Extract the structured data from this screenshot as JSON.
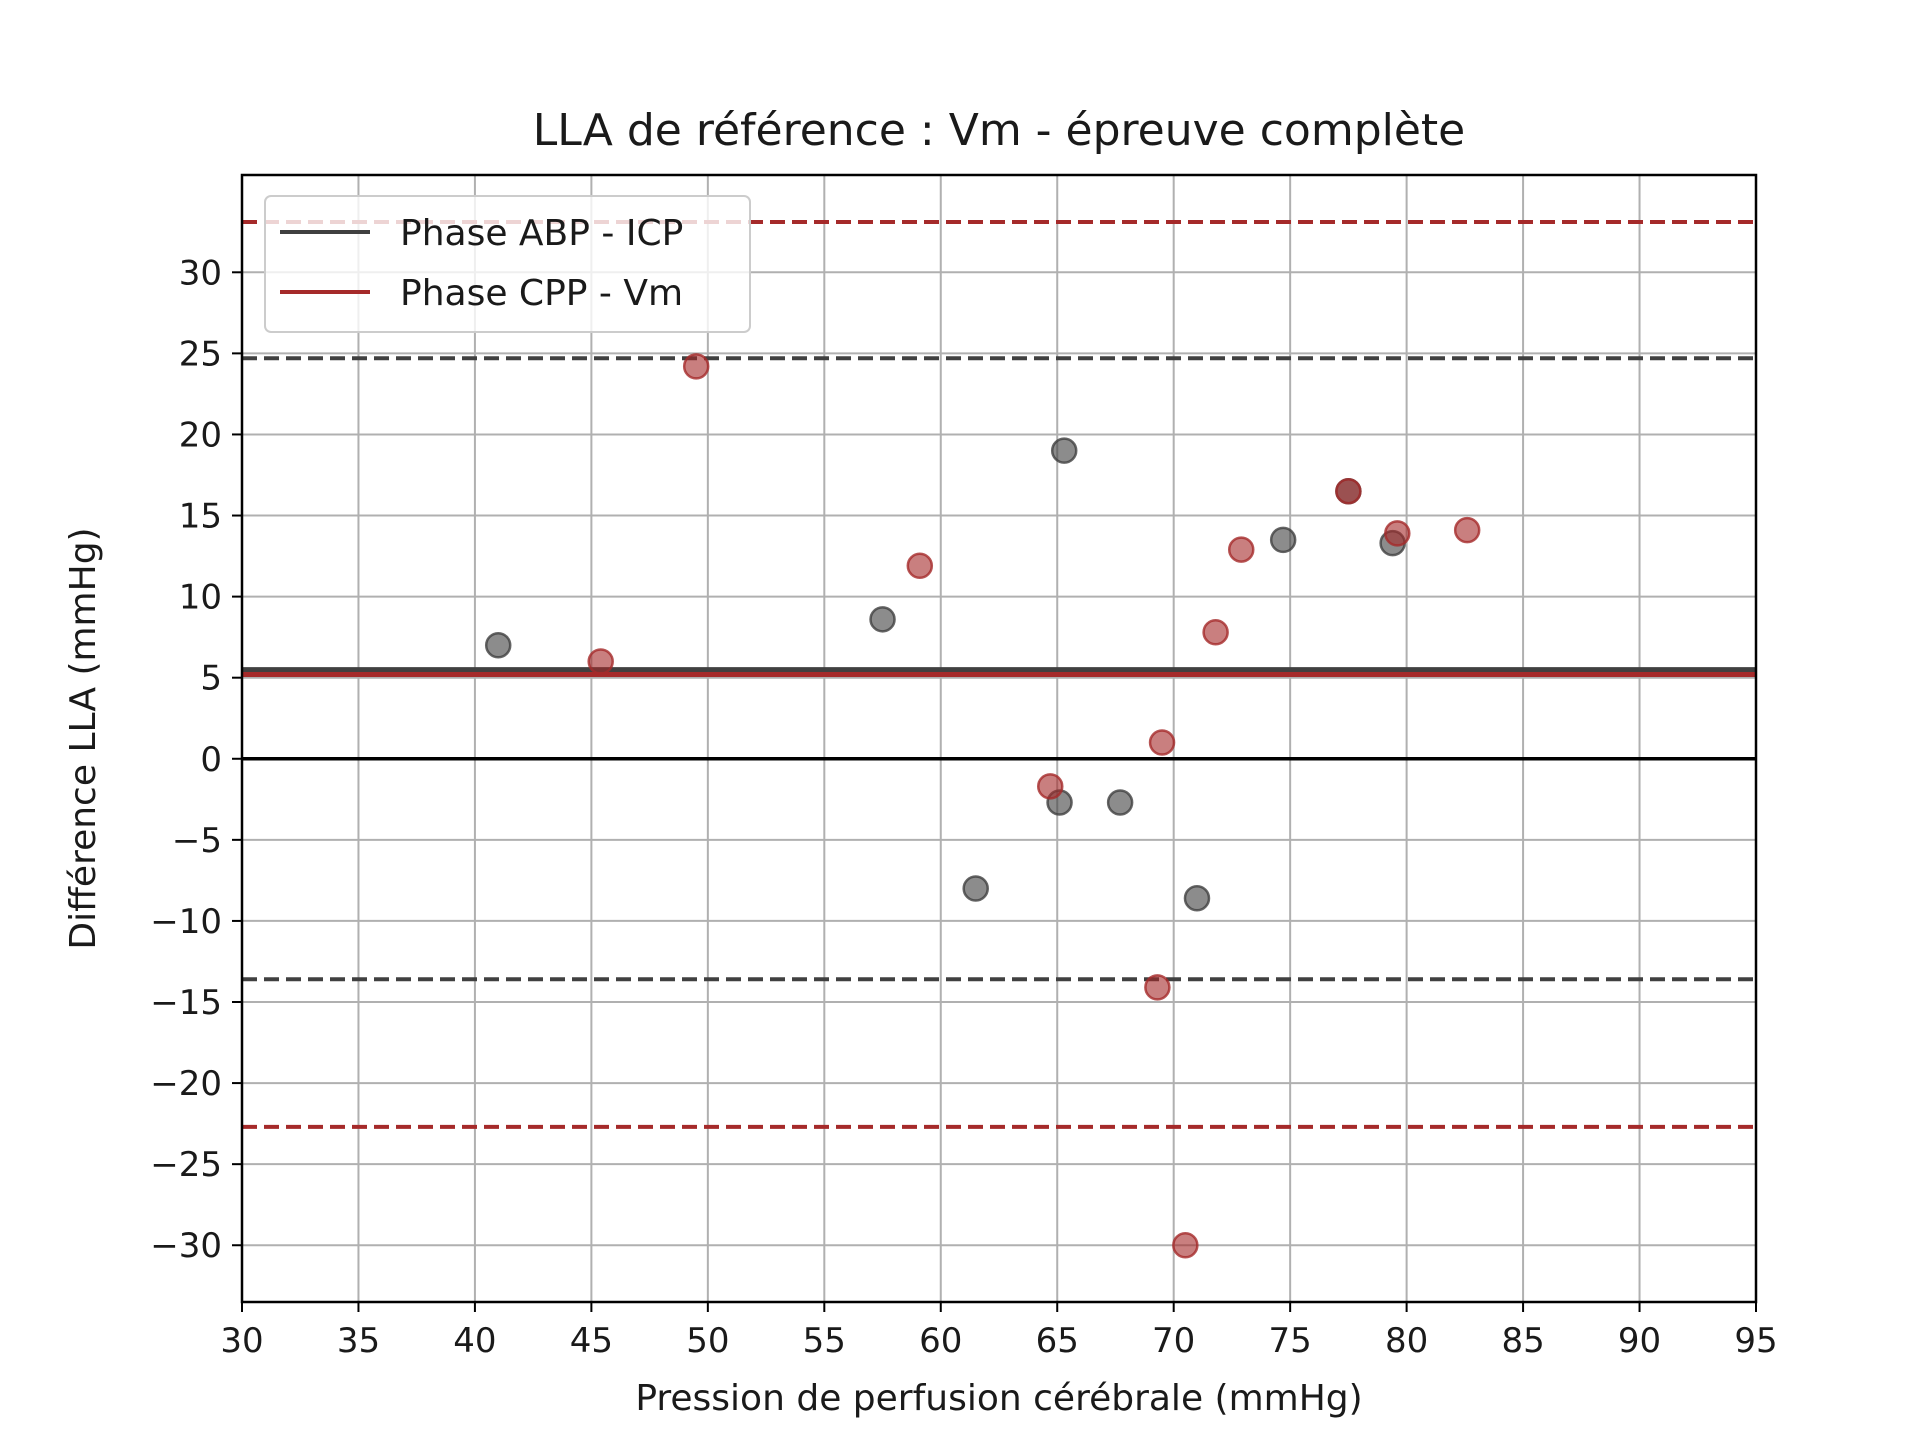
{
  "chart_data": {
    "type": "scatter",
    "title": "LLA de référence : Vm - épreuve complète",
    "xlabel": "Pression de perfusion cérébrale (mmHg)",
    "ylabel": "Différence LLA (mmHg)",
    "xlim": [
      30,
      95
    ],
    "ylim": [
      -33.5,
      36
    ],
    "xticks": [
      30,
      35,
      40,
      45,
      50,
      55,
      60,
      65,
      70,
      75,
      80,
      85,
      90,
      95
    ],
    "yticks": [
      -30,
      -25,
      -20,
      -15,
      -10,
      -5,
      0,
      5,
      10,
      15,
      20,
      25,
      30
    ],
    "grid": true,
    "legend_position": "top-left",
    "zero_line": 0,
    "series": [
      {
        "name": "Phase ABP - ICP",
        "color": "#404040",
        "mean": 5.5,
        "upper_limit": 24.7,
        "lower_limit": -13.6,
        "points": [
          {
            "x": 41.0,
            "y": 7.0
          },
          {
            "x": 57.5,
            "y": 8.6
          },
          {
            "x": 65.3,
            "y": 19.0
          },
          {
            "x": 74.7,
            "y": 13.5
          },
          {
            "x": 77.5,
            "y": 16.5
          },
          {
            "x": 79.4,
            "y": 13.3
          },
          {
            "x": 65.1,
            "y": -2.7
          },
          {
            "x": 67.7,
            "y": -2.7
          },
          {
            "x": 61.5,
            "y": -8.0
          },
          {
            "x": 71.0,
            "y": -8.6
          }
        ]
      },
      {
        "name": "Phase CPP - Vm",
        "color": "#a52a2a",
        "mean": 5.2,
        "upper_limit": 33.1,
        "lower_limit": -22.7,
        "points": [
          {
            "x": 49.5,
            "y": 24.2
          },
          {
            "x": 45.4,
            "y": 6.0
          },
          {
            "x": 59.1,
            "y": 11.9
          },
          {
            "x": 72.9,
            "y": 12.9
          },
          {
            "x": 71.8,
            "y": 7.8
          },
          {
            "x": 77.5,
            "y": 16.5
          },
          {
            "x": 79.6,
            "y": 13.9
          },
          {
            "x": 82.6,
            "y": 14.1
          },
          {
            "x": 69.5,
            "y": 1.0
          },
          {
            "x": 64.7,
            "y": -1.7
          },
          {
            "x": 69.3,
            "y": -14.1
          },
          {
            "x": 70.5,
            "y": -30.0
          }
        ]
      }
    ]
  }
}
